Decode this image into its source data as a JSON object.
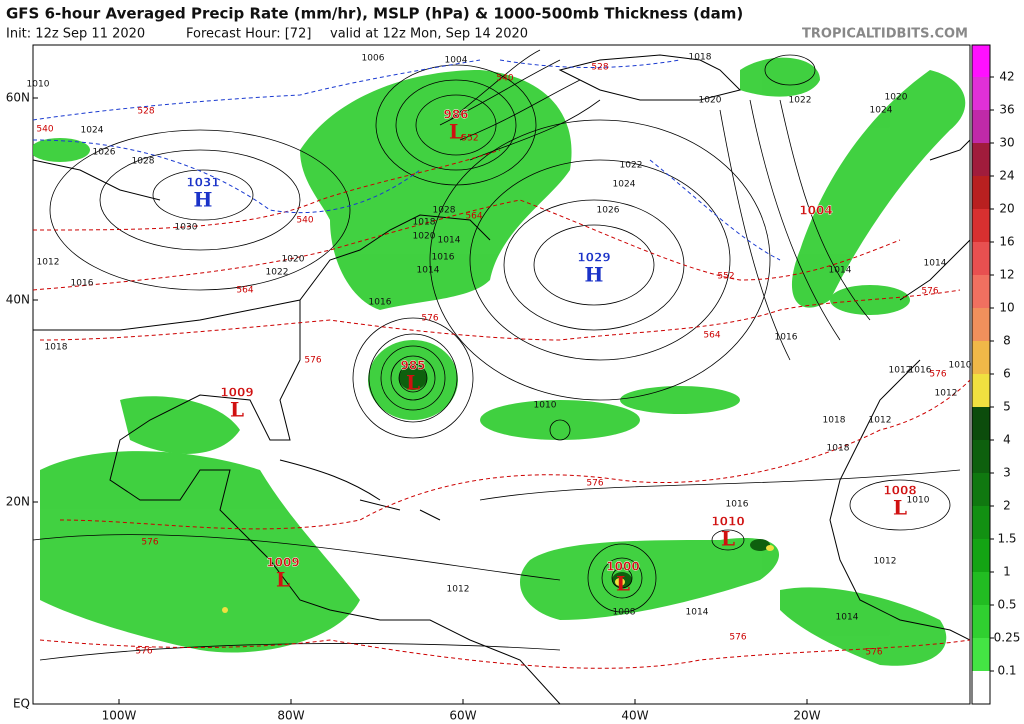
{
  "header": {
    "title": "GFS 6-hour Averaged Precip Rate (mm/hr), MSLP (hPa) & 1000-500mb Thickness (dam)",
    "init": "Init: 12z Sep 11 2020",
    "forecast_hour": "Forecast Hour: [72]",
    "valid": "valid at 12z Mon, Sep 14 2020",
    "site": "TROPICALTIDBITS.COM"
  },
  "map": {
    "lat_ticks": [
      {
        "value": 60,
        "label": "60N"
      },
      {
        "value": 40,
        "label": "40N"
      },
      {
        "value": 20,
        "label": "20N"
      },
      {
        "value": 0,
        "label": "EQ"
      }
    ],
    "lon_ticks": [
      {
        "value": -100,
        "label": "100W"
      },
      {
        "value": -80,
        "label": "80W"
      },
      {
        "value": -60,
        "label": "60W"
      },
      {
        "value": -40,
        "label": "40W"
      },
      {
        "value": -20,
        "label": "20W"
      }
    ],
    "centers": [
      {
        "value": 1031,
        "letter": "H"
      },
      {
        "value": 1029,
        "letter": "H"
      },
      {
        "value": 986,
        "letter": "L"
      },
      {
        "value": 985,
        "letter": "L"
      },
      {
        "value": 1009,
        "letter": "L"
      },
      {
        "value": 1009,
        "letter": "L"
      },
      {
        "value": 1000,
        "letter": "L"
      },
      {
        "value": 1010,
        "letter": "L"
      },
      {
        "value": 1004
      },
      {
        "value": 1008,
        "letter": "L"
      }
    ],
    "isobar_labels": [
      1024,
      1026,
      1028,
      1030,
      1010,
      1012,
      1016,
      1020,
      1022,
      1018,
      1006,
      1004,
      1018,
      1020,
      1014,
      1016,
      1022,
      1024,
      1026,
      1028,
      1014,
      1016,
      1018,
      1020,
      1022,
      1024,
      1020,
      1014,
      1016,
      1018,
      1012,
      1010,
      1012,
      1014,
      1016,
      1018,
      1010,
      1012,
      1014,
      1012,
      1008,
      1014,
      1010,
      1016,
      1012
    ],
    "thickness_labels": [
      528,
      540,
      528,
      540,
      540,
      552,
      564,
      564,
      576,
      576,
      576,
      552,
      564,
      576,
      576,
      576,
      576,
      576,
      576
    ]
  },
  "colorbar": {
    "ticks": [
      42,
      36,
      30,
      24,
      20,
      16,
      12,
      10,
      8,
      6,
      5,
      4,
      3,
      2,
      1.5,
      1,
      0.5,
      0.25,
      0.1
    ],
    "colors": [
      "#ff10ff",
      "#e030d8",
      "#c02aa8",
      "#a01c3c",
      "#b82020",
      "#d83030",
      "#e85050",
      "#f07060",
      "#f0905c",
      "#f0b848",
      "#f0e040",
      "#0c4c0c",
      "#0e600e",
      "#107810",
      "#129012",
      "#14a414",
      "#22bc22",
      "#30d030",
      "#44e444",
      "#ffffff"
    ]
  }
}
